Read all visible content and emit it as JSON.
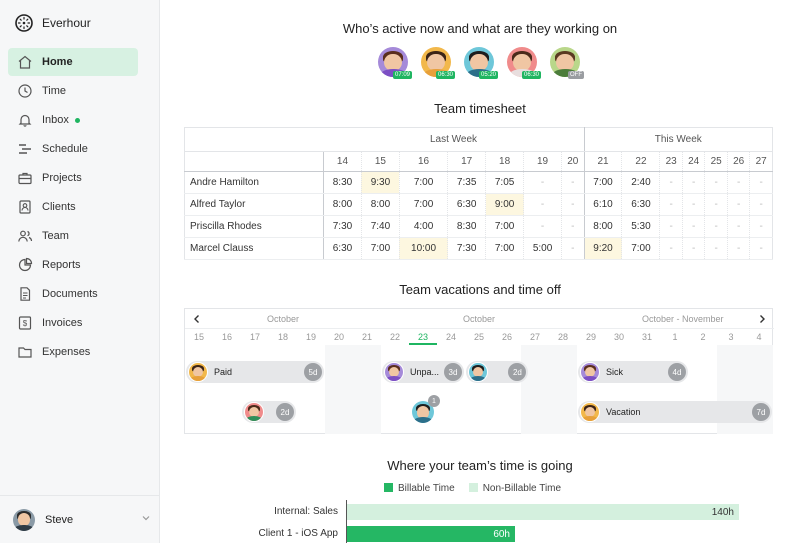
{
  "app": {
    "name": "Everhour"
  },
  "colors": {
    "accent": "#1fb561",
    "billable": "#25b764",
    "non_billable": "#d4f0de",
    "highlight": "#fdf7e0"
  },
  "sidebar": {
    "items": [
      {
        "label": "Home",
        "icon": "home-icon",
        "active": true
      },
      {
        "label": "Time",
        "icon": "clock-icon"
      },
      {
        "label": "Inbox",
        "icon": "bell-icon",
        "dot": true
      },
      {
        "label": "Schedule",
        "icon": "schedule-icon"
      },
      {
        "label": "Projects",
        "icon": "briefcase-icon"
      },
      {
        "label": "Clients",
        "icon": "contacts-icon"
      },
      {
        "label": "Team",
        "icon": "team-icon"
      },
      {
        "label": "Reports",
        "icon": "pie-chart-icon"
      },
      {
        "label": "Documents",
        "icon": "document-icon"
      },
      {
        "label": "Invoices",
        "icon": "invoice-icon"
      },
      {
        "label": "Expenses",
        "icon": "folder-icon"
      }
    ],
    "user": {
      "name": "Steve"
    }
  },
  "active_now": {
    "title": "Who’s active now and what are they working on",
    "people": [
      {
        "tag": "07:09",
        "tag_color": "#1fb561",
        "bg": "#a58ad9",
        "hair": "#5a2e1e",
        "shirt": "#7c4fc4"
      },
      {
        "tag": "06:30",
        "tag_color": "#1fb561",
        "bg": "#f2b84b",
        "hair": "#3b2417",
        "shirt": "#e7a03a"
      },
      {
        "tag": "05:20",
        "tag_color": "#1fb561",
        "bg": "#6ec7d9",
        "hair": "#1e1e1e",
        "shirt": "#2c6f8a"
      },
      {
        "tag": "06:30",
        "tag_color": "#1fb561",
        "bg": "#f08b8b",
        "hair": "#4a2a1a",
        "shirt": "#e8dede"
      },
      {
        "tag": "OFF",
        "tag_color": "#9a9da1",
        "bg": "#b9d78a",
        "hair": "#5b3a22",
        "shirt": "#4c7d3b"
      }
    ]
  },
  "timesheet": {
    "title": "Team timesheet",
    "last_week_label": "Last Week",
    "this_week_label": "This Week",
    "days": [
      "14",
      "15",
      "16",
      "17",
      "18",
      "19",
      "20",
      "21",
      "22",
      "23",
      "24",
      "25",
      "26",
      "27"
    ],
    "rows": [
      {
        "name": "Andre Hamilton",
        "cells": [
          "8:30",
          "9:30",
          "7:00",
          "7:35",
          "7:05",
          "-",
          "-",
          "7:00",
          "2:40",
          "-",
          "-",
          "-",
          "-",
          "-"
        ]
      },
      {
        "name": "Alfred Taylor",
        "cells": [
          "8:00",
          "8:00",
          "7:00",
          "6:30",
          "9:00",
          "-",
          "-",
          "6:10",
          "6:30",
          "-",
          "-",
          "-",
          "-",
          "-"
        ]
      },
      {
        "name": "Priscilla Rhodes",
        "cells": [
          "7:30",
          "7:40",
          "4:00",
          "8:30",
          "7:00",
          "-",
          "-",
          "8:00",
          "5:30",
          "-",
          "-",
          "-",
          "-",
          "-"
        ]
      },
      {
        "name": "Marcel Clauss",
        "cells": [
          "6:30",
          "7:00",
          "10:00",
          "7:30",
          "7:00",
          "5:00",
          "-",
          "9:20",
          "7:00",
          "-",
          "-",
          "-",
          "-",
          "-"
        ]
      }
    ]
  },
  "vacations": {
    "title": "Team vacations and time off",
    "months": [
      "October",
      "October",
      "October - November"
    ],
    "days": [
      "15",
      "16",
      "17",
      "18",
      "19",
      "20",
      "21",
      "22",
      "23",
      "24",
      "25",
      "26",
      "27",
      "28",
      "29",
      "30",
      "31",
      "1",
      "2",
      "3",
      "4"
    ],
    "today": "23",
    "bars": [
      {
        "label": "Paid",
        "count": "5d",
        "bg": "#f2b84b",
        "hair": "#3b2417",
        "shirt": "#e7a03a"
      },
      {
        "label": "",
        "count": "2d",
        "bg": "#f08b8b",
        "hair": "#4a2a1a",
        "shirt": "#2f8f5a"
      },
      {
        "label": "Unpa...",
        "count": "3d",
        "bg": "#a58ad9",
        "hair": "#5a2e1e",
        "shirt": "#7c4fc4"
      },
      {
        "label": "",
        "count": "2d",
        "bg": "#6ec7d9",
        "hair": "#1e1e1e",
        "shirt": "#2c6f8a"
      },
      {
        "label": "Sick",
        "count": "4d",
        "bg": "#a58ad9",
        "hair": "#5a2e1e",
        "shirt": "#7c4fc4"
      },
      {
        "label": "Vacation",
        "count": "7d",
        "bg": "#f2b84b",
        "hair": "#3b2417",
        "shirt": "#e7a03a"
      }
    ],
    "solo": {
      "badge": "1",
      "bg": "#6ec7d9",
      "hair": "#1e1e1e",
      "shirt": "#2c6f8a"
    }
  },
  "time_going": {
    "title": "Where your team’s time is going",
    "legend": {
      "billable": "Billable Time",
      "non_billable": "Non-Billable Time"
    },
    "chart_data": {
      "type": "bar",
      "orientation": "horizontal",
      "categories": [
        "Internal: Sales",
        "Client 1 - iOS App"
      ],
      "series": [
        {
          "name": "Non-Billable Time",
          "values": [
            140,
            0
          ]
        },
        {
          "name": "Billable Time",
          "values": [
            0,
            60
          ]
        }
      ],
      "data_labels": [
        "140h",
        "60h"
      ],
      "xlim": [
        0,
        150
      ]
    }
  }
}
